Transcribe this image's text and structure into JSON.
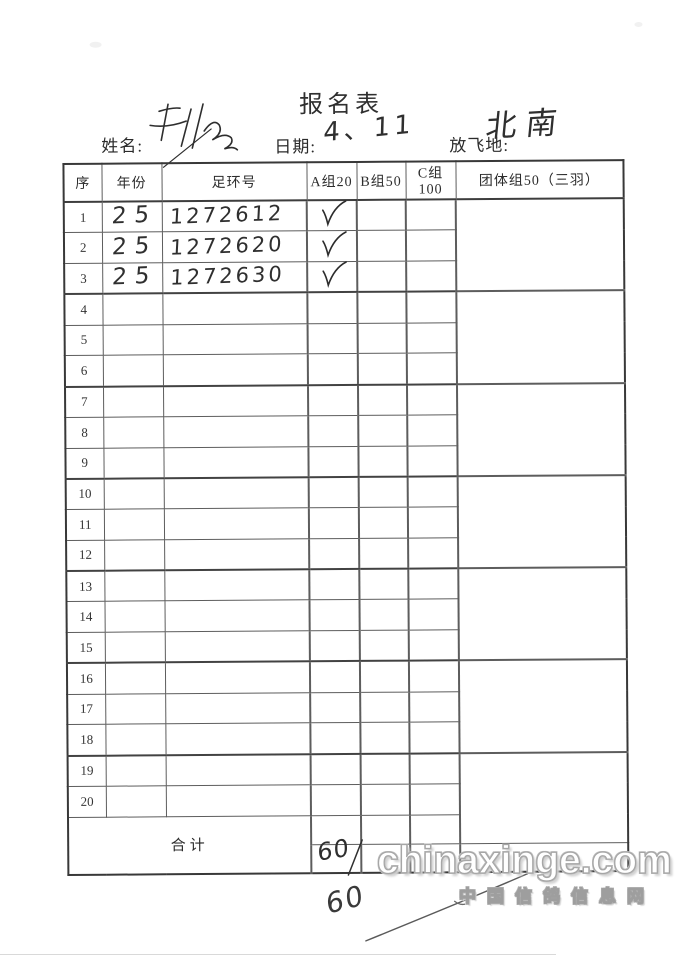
{
  "page": {
    "title": "报名表",
    "fields": {
      "name_label": "姓名:",
      "date_label": "日期:",
      "date_value": "4、11",
      "site_label": "放飞地:",
      "site_value": "北南"
    },
    "table": {
      "headers": [
        "序",
        "年份",
        "足环号",
        "A组20",
        "B组50",
        "C组100",
        "团体组50（三羽）"
      ],
      "rows": [
        {
          "no": "1",
          "year": "25",
          "ring": "1272612",
          "a": "✓",
          "b": "",
          "c": ""
        },
        {
          "no": "2",
          "year": "25",
          "ring": "1272620",
          "a": "✓",
          "b": "",
          "c": ""
        },
        {
          "no": "3",
          "year": "25",
          "ring": "1272630",
          "a": "✓",
          "b": "",
          "c": ""
        },
        {
          "no": "4",
          "year": "",
          "ring": "",
          "a": "",
          "b": "",
          "c": ""
        },
        {
          "no": "5",
          "year": "",
          "ring": "",
          "a": "",
          "b": "",
          "c": ""
        },
        {
          "no": "6",
          "year": "",
          "ring": "",
          "a": "",
          "b": "",
          "c": ""
        },
        {
          "no": "7",
          "year": "",
          "ring": "",
          "a": "",
          "b": "",
          "c": ""
        },
        {
          "no": "8",
          "year": "",
          "ring": "",
          "a": "",
          "b": "",
          "c": ""
        },
        {
          "no": "9",
          "year": "",
          "ring": "",
          "a": "",
          "b": "",
          "c": ""
        },
        {
          "no": "10",
          "year": "",
          "ring": "",
          "a": "",
          "b": "",
          "c": ""
        },
        {
          "no": "11",
          "year": "",
          "ring": "",
          "a": "",
          "b": "",
          "c": ""
        },
        {
          "no": "12",
          "year": "",
          "ring": "",
          "a": "",
          "b": "",
          "c": ""
        },
        {
          "no": "13",
          "year": "",
          "ring": "",
          "a": "",
          "b": "",
          "c": ""
        },
        {
          "no": "14",
          "year": "",
          "ring": "",
          "a": "",
          "b": "",
          "c": ""
        },
        {
          "no": "15",
          "year": "",
          "ring": "",
          "a": "",
          "b": "",
          "c": ""
        },
        {
          "no": "16",
          "year": "",
          "ring": "",
          "a": "",
          "b": "",
          "c": ""
        },
        {
          "no": "17",
          "year": "",
          "ring": "",
          "a": "",
          "b": "",
          "c": ""
        },
        {
          "no": "18",
          "year": "",
          "ring": "",
          "a": "",
          "b": "",
          "c": ""
        },
        {
          "no": "19",
          "year": "",
          "ring": "",
          "a": "",
          "b": "",
          "c": ""
        },
        {
          "no": "20",
          "year": "",
          "ring": "",
          "a": "",
          "b": "",
          "c": ""
        }
      ],
      "total_label": "合计",
      "total_a_value": "60"
    },
    "annotations": {
      "below_total_value": "60"
    },
    "watermark": {
      "line1": "chinaxinge.com",
      "line2": "中国信鸽信息网"
    }
  }
}
